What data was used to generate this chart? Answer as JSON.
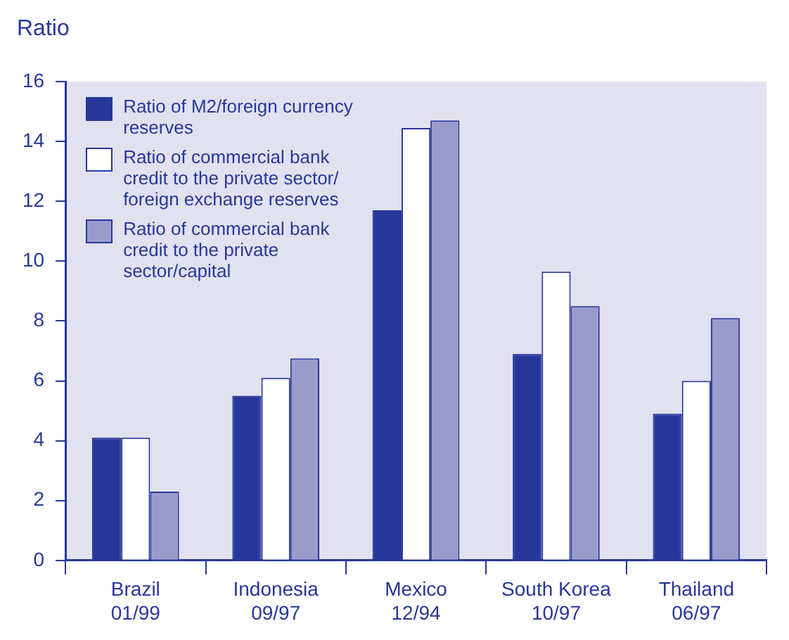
{
  "chart_data": {
    "type": "bar",
    "ylabel": "Ratio",
    "categories": [
      "Brazil\n01/99",
      "Indonesia\n09/97",
      "Mexico\n12/94",
      "South Korea\n10/97",
      "Thailand\n06/97"
    ],
    "series": [
      {
        "name": "Ratio of M2/foreign currency reserves",
        "color": "#27379a",
        "values": [
          4.1,
          5.5,
          11.7,
          6.9,
          4.9
        ]
      },
      {
        "name": "Ratio of commercial bank credit to the private sector/ foreign exchange reserves",
        "color": "#ffffff",
        "values": [
          4.1,
          6.1,
          14.45,
          9.65,
          6.0
        ]
      },
      {
        "name": "Ratio of commercial bank credit to the private sector/capital",
        "color": "#9b9bcb",
        "values": [
          2.3,
          6.75,
          14.7,
          8.5,
          8.1
        ]
      }
    ],
    "ylim": [
      0,
      16
    ],
    "yticks": [
      0,
      2,
      4,
      6,
      8,
      10,
      12,
      14,
      16
    ],
    "grid": false,
    "legend": "top left"
  }
}
